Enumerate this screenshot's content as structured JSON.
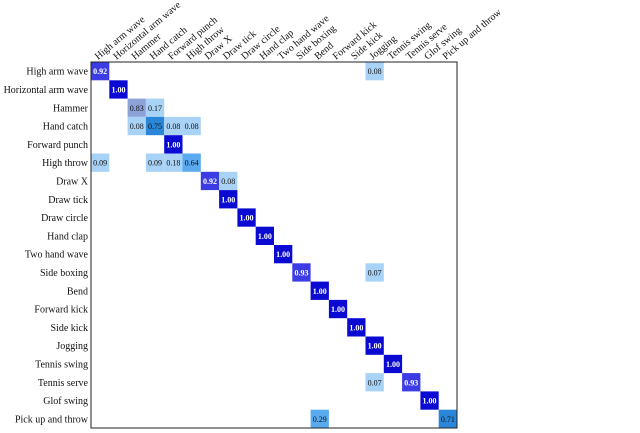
{
  "chart_data": {
    "type": "heatmap",
    "title": "",
    "xlabel": "",
    "ylabel": "",
    "row_labels": [
      "High arm wave",
      "Horizontal arm wave",
      "Hammer",
      "Hand catch",
      "Forward punch",
      "High throw",
      "Draw X",
      "Draw tick",
      "Draw circle",
      "Hand clap",
      "Two hand wave",
      "Side boxing",
      "Bend",
      "Forward kick",
      "Side kick",
      "Jogging",
      "Tennis swing",
      "Tennis serve",
      "Glof swing",
      "Pick up and throw"
    ],
    "col_labels": [
      "High arm wave",
      "Horizontal arm wave",
      "Hammer",
      "Hand catch",
      "Forward punch",
      "High throw",
      "Draw  X",
      "Draw tick",
      "Draw circle",
      "Hand clap",
      "Two hand wave",
      "Side boxing",
      "Bend",
      "Forward kick",
      "Side kick",
      "Jogging",
      "Tennis swing",
      "Tennis serve",
      "Glof swing",
      "Pick up and throw"
    ],
    "cells": [
      {
        "row": 0,
        "col": 0,
        "value": 0.92,
        "label": "0.92"
      },
      {
        "row": 0,
        "col": 15,
        "value": 0.08,
        "label": "0.08"
      },
      {
        "row": 1,
        "col": 1,
        "value": 1.0,
        "label": "1.00"
      },
      {
        "row": 2,
        "col": 2,
        "value": 0.83,
        "label": "0.83"
      },
      {
        "row": 2,
        "col": 3,
        "value": 0.17,
        "label": "0.17"
      },
      {
        "row": 3,
        "col": 2,
        "value": 0.08,
        "label": "0.08"
      },
      {
        "row": 3,
        "col": 3,
        "value": 0.75,
        "label": "0.75"
      },
      {
        "row": 3,
        "col": 4,
        "value": 0.08,
        "label": "0.08"
      },
      {
        "row": 3,
        "col": 5,
        "value": 0.08,
        "label": "0.08"
      },
      {
        "row": 4,
        "col": 4,
        "value": 1.0,
        "label": "1.00"
      },
      {
        "row": 5,
        "col": 0,
        "value": 0.09,
        "label": "0.09"
      },
      {
        "row": 5,
        "col": 3,
        "value": 0.09,
        "label": "0.09"
      },
      {
        "row": 5,
        "col": 4,
        "value": 0.18,
        "label": "0.18"
      },
      {
        "row": 5,
        "col": 5,
        "value": 0.64,
        "label": "0.64"
      },
      {
        "row": 6,
        "col": 6,
        "value": 0.92,
        "label": "0.92"
      },
      {
        "row": 6,
        "col": 7,
        "value": 0.08,
        "label": "0.08"
      },
      {
        "row": 7,
        "col": 7,
        "value": 1.0,
        "label": "1.00"
      },
      {
        "row": 8,
        "col": 8,
        "value": 1.0,
        "label": "1.00"
      },
      {
        "row": 9,
        "col": 9,
        "value": 1.0,
        "label": "1.00"
      },
      {
        "row": 10,
        "col": 10,
        "value": 1.0,
        "label": "1.00"
      },
      {
        "row": 11,
        "col": 11,
        "value": 0.93,
        "label": "0.93"
      },
      {
        "row": 11,
        "col": 15,
        "value": 0.07,
        "label": "0.07"
      },
      {
        "row": 12,
        "col": 12,
        "value": 1.0,
        "label": "1.00"
      },
      {
        "row": 13,
        "col": 13,
        "value": 1.0,
        "label": "1.00"
      },
      {
        "row": 14,
        "col": 14,
        "value": 1.0,
        "label": "1.00"
      },
      {
        "row": 15,
        "col": 15,
        "value": 1.0,
        "label": "1.00"
      },
      {
        "row": 16,
        "col": 16,
        "value": 1.0,
        "label": "1.00"
      },
      {
        "row": 17,
        "col": 15,
        "value": 0.07,
        "label": "0.07"
      },
      {
        "row": 17,
        "col": 17,
        "value": 0.93,
        "label": "0.93"
      },
      {
        "row": 18,
        "col": 18,
        "value": 1.0,
        "label": "1.00"
      },
      {
        "row": 19,
        "col": 12,
        "value": 0.29,
        "label": "0.29"
      },
      {
        "row": 19,
        "col": 19,
        "value": 0.71,
        "label": "0.71"
      }
    ],
    "grid": false,
    "legend": "none",
    "colors": {
      "full": "#0a0ad2",
      "high": "#3c3ce4",
      "hammer": "#8ca2d8",
      "mid": "#2a86d8",
      "low": "#5aaaf0",
      "faint": "#a8d2f6",
      "frame": "#222222"
    }
  }
}
